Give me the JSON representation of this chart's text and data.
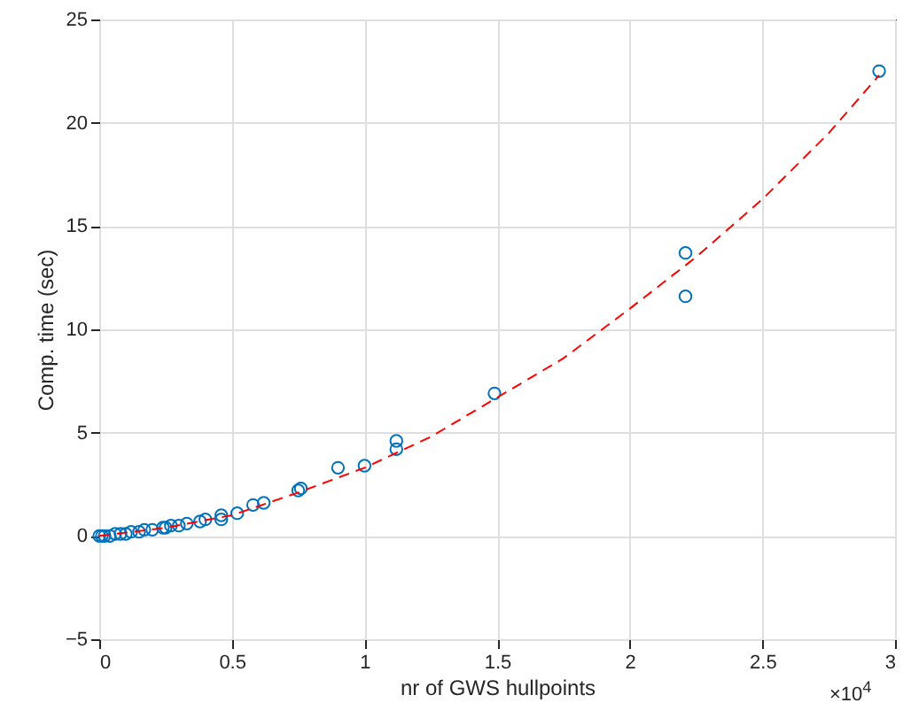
{
  "chart_data": {
    "type": "scatter",
    "xlabel": "nr of GWS hullpoints",
    "ylabel": "Comp. time (sec)",
    "xlim": [
      0,
      3
    ],
    "xticks": [
      0,
      0.5,
      1,
      1.5,
      2,
      2.5,
      3
    ],
    "ylim": [
      -5,
      25
    ],
    "yticks": [
      -5,
      0,
      5,
      10,
      15,
      20,
      25
    ],
    "grid": true,
    "annotations": [
      "×10$^{4}$"
    ],
    "series": [
      {
        "color": "#0072bd",
        "marker": "circle",
        "x": [
          2.94,
          2.21,
          2.21,
          1.49,
          1.12,
          1.12,
          1.0,
          0.9,
          0.76,
          0.75,
          0.62,
          0.58,
          0.52,
          0.46,
          0.46,
          0.4,
          0.38,
          0.33,
          0.3,
          0.27,
          0.25,
          0.24,
          0.2,
          0.17,
          0.15,
          0.12,
          0.1,
          0.08,
          0.06,
          0.04,
          0.02,
          0.01,
          0.0
        ],
        "values": [
          22.5,
          13.7,
          11.6,
          6.9,
          4.6,
          4.2,
          3.4,
          3.3,
          2.3,
          2.2,
          1.6,
          1.5,
          1.1,
          1.0,
          0.8,
          0.8,
          0.7,
          0.6,
          0.5,
          0.5,
          0.4,
          0.4,
          0.3,
          0.3,
          0.2,
          0.2,
          0.1,
          0.1,
          0.1,
          0.0,
          0.0,
          0.0,
          0.0
        ]
      },
      {
        "type": "line",
        "color": "#ff0000",
        "line_style": "dashed",
        "x": [
          0,
          0.25,
          0.5,
          0.75,
          1.0,
          1.25,
          1.5,
          1.75,
          2.0,
          2.25,
          2.5,
          2.75,
          2.94
        ],
        "values": [
          0,
          0.4,
          1.0,
          2.1,
          3.3,
          4.8,
          6.7,
          8.6,
          11.0,
          13.5,
          16.3,
          19.5,
          22.3
        ]
      }
    ]
  }
}
